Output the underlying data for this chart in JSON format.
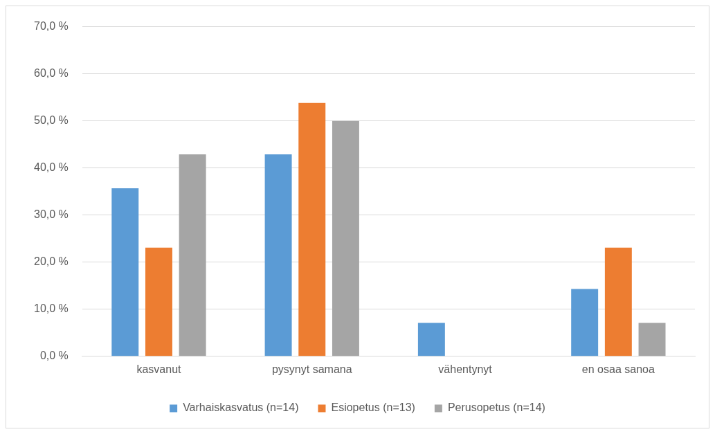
{
  "chart_data": {
    "type": "bar",
    "categories": [
      "kasvanut",
      "pysynyt samana",
      "vähentynyt",
      "en osaa sanoa"
    ],
    "series": [
      {
        "name": "Varhaiskasvatus (n=14)",
        "color": "#5b9bd5",
        "values": [
          35.7,
          42.9,
          7.1,
          14.3
        ]
      },
      {
        "name": "Esiopetus (n=13)",
        "color": "#ed7d31",
        "values": [
          23.1,
          53.8,
          0,
          23.1
        ]
      },
      {
        "name": "Perusopetus (n=14)",
        "color": "#a5a5a5",
        "values": [
          42.9,
          50,
          0,
          7.1
        ]
      }
    ],
    "ylim": [
      0,
      70
    ],
    "yticks": [
      {
        "value": 0,
        "label": "0,0 %"
      },
      {
        "value": 10,
        "label": "10,0 %"
      },
      {
        "value": 20,
        "label": "20,0 %"
      },
      {
        "value": 30,
        "label": "30,0 %"
      },
      {
        "value": 40,
        "label": "40,0 %"
      },
      {
        "value": 50,
        "label": "50,0 %"
      },
      {
        "value": 60,
        "label": "60,0 %"
      },
      {
        "value": 70,
        "label": "70,0 %"
      }
    ],
    "grid": "y",
    "legend": "bottom"
  }
}
